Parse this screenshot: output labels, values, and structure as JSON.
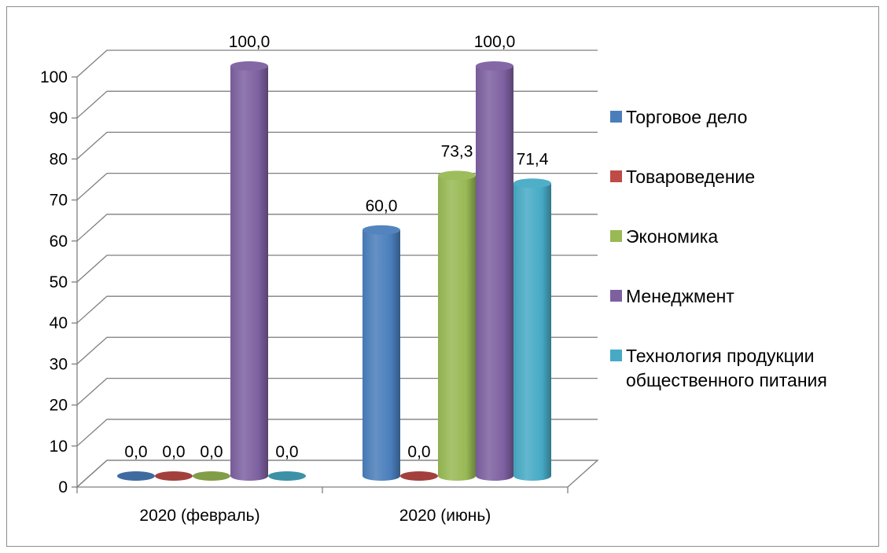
{
  "chart_data": {
    "type": "bar",
    "style": "3d-cylinder",
    "categories": [
      "2020 (февраль)",
      "2020 (июнь)"
    ],
    "series": [
      {
        "name": "Торговое дело",
        "values": [
          0.0,
          60.0
        ],
        "labels": [
          "0,0",
          "60,0"
        ],
        "color": "#4a7ebb"
      },
      {
        "name": "Товароведение",
        "values": [
          0.0,
          0.0
        ],
        "labels": [
          "0,0",
          "0,0"
        ],
        "color": "#be4b48"
      },
      {
        "name": "Экономика",
        "values": [
          0.0,
          73.3
        ],
        "labels": [
          "0,0",
          "73,3"
        ],
        "color": "#98b954"
      },
      {
        "name": "Менеджмент",
        "values": [
          100.0,
          100.0
        ],
        "labels": [
          "100,0",
          "100,0"
        ],
        "color": "#7d60a0"
      },
      {
        "name": "Технология продукции общественного питания",
        "values": [
          0.0,
          71.4
        ],
        "labels": [
          "0,0",
          "71,4"
        ],
        "color": "#46aac5"
      }
    ],
    "y_ticks": [
      "0",
      "10",
      "20",
      "30",
      "40",
      "50",
      "60",
      "70",
      "80",
      "90",
      "100"
    ],
    "ylim": [
      0,
      100
    ],
    "grid": true,
    "legend_position": "right",
    "title": "",
    "xlabel": "",
    "ylabel": ""
  }
}
